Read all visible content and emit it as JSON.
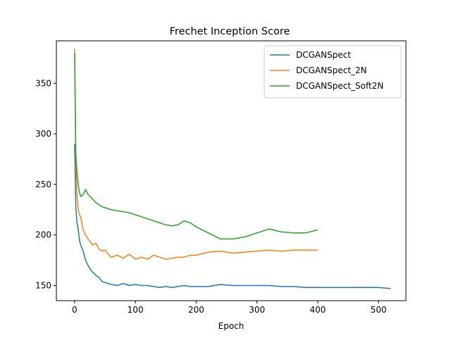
{
  "chart_data": {
    "type": "line",
    "title": "Frechet Inception Score",
    "xlabel": "Epoch",
    "ylabel": "",
    "xlim": [
      -30,
      545
    ],
    "ylim": [
      135,
      392
    ],
    "xticks": [
      0,
      100,
      200,
      300,
      400,
      500
    ],
    "yticks": [
      150,
      200,
      250,
      300,
      350
    ],
    "grid": false,
    "legend_position": "top-right",
    "series": [
      {
        "name": "DCGANSpect",
        "color": "#1f77b4",
        "x": [
          0,
          2,
          4,
          6,
          8,
          10,
          14,
          18,
          22,
          26,
          30,
          35,
          40,
          45,
          50,
          60,
          70,
          80,
          90,
          100,
          110,
          120,
          130,
          140,
          150,
          160,
          170,
          180,
          190,
          200,
          220,
          240,
          260,
          280,
          300,
          320,
          340,
          360,
          380,
          400,
          420,
          440,
          460,
          480,
          500,
          520
        ],
        "y": [
          290,
          228,
          212,
          205,
          195,
          190,
          184,
          175,
          170,
          166,
          163,
          160,
          158,
          154,
          153,
          151,
          150,
          152,
          150,
          151,
          150,
          150,
          149,
          148,
          149,
          148,
          149,
          150,
          149,
          149,
          149,
          151,
          150,
          150,
          150,
          150,
          149,
          149,
          148,
          148,
          148,
          148,
          148,
          148,
          148,
          147
        ]
      },
      {
        "name": "DCGANSpect_2N",
        "color": "#ff7f0e",
        "x": [
          0,
          2,
          4,
          6,
          8,
          10,
          14,
          18,
          22,
          26,
          30,
          35,
          40,
          45,
          50,
          60,
          70,
          80,
          90,
          100,
          110,
          120,
          130,
          140,
          150,
          160,
          170,
          180,
          190,
          200,
          220,
          240,
          260,
          280,
          300,
          320,
          340,
          360,
          380,
          400
        ],
        "y": [
          384,
          270,
          240,
          225,
          220,
          218,
          205,
          200,
          196,
          193,
          190,
          192,
          186,
          184,
          185,
          178,
          180,
          177,
          181,
          176,
          178,
          176,
          180,
          178,
          176,
          177,
          178,
          178,
          180,
          180,
          183,
          184,
          182,
          183,
          184,
          185,
          184,
          185,
          185,
          185
        ]
      },
      {
        "name": "DCGANSpect_Soft2N",
        "color": "#2ca02c",
        "x": [
          0,
          2,
          4,
          6,
          8,
          10,
          14,
          18,
          22,
          26,
          30,
          35,
          40,
          45,
          50,
          60,
          70,
          80,
          90,
          100,
          110,
          120,
          130,
          140,
          150,
          160,
          170,
          180,
          190,
          200,
          220,
          240,
          260,
          280,
          300,
          320,
          340,
          360,
          380,
          400
        ],
        "y": [
          380,
          280,
          262,
          250,
          242,
          238,
          240,
          245,
          240,
          238,
          235,
          232,
          230,
          228,
          227,
          225,
          224,
          223,
          222,
          220,
          218,
          216,
          214,
          212,
          210,
          209,
          210,
          214,
          212,
          208,
          202,
          196,
          196,
          198,
          202,
          206,
          203,
          202,
          202,
          205
        ]
      }
    ]
  }
}
